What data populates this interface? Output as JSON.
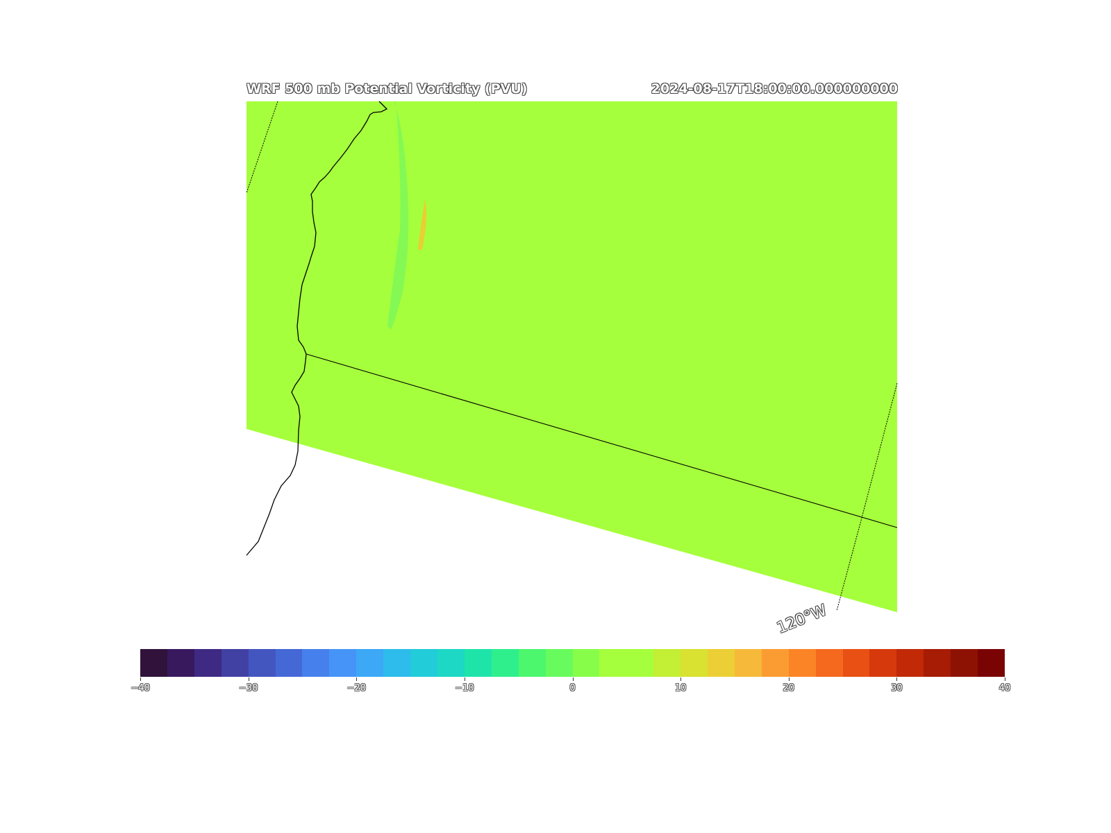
{
  "map": {
    "title_left": "WRF 500 mb Potential Vorticity (PVU)",
    "title_right": "2024-08-17T18:00:00.000000000",
    "longitude_label": "120°W",
    "background_field_color": "#a6ff3c",
    "boundary_color": "#000000"
  },
  "colorbar": {
    "ticks": [
      "−40",
      "−30",
      "−20",
      "−10",
      "0",
      "10",
      "20",
      "30",
      "40"
    ],
    "colors": [
      "#30123b",
      "#38195e",
      "#3e2a82",
      "#4140a3",
      "#4356c0",
      "#4468d6",
      "#4680ec",
      "#4694f7",
      "#3ca8f6",
      "#2dbceb",
      "#22ccd9",
      "#1cd8c4",
      "#1fe4aa",
      "#2fef8d",
      "#4cf76e",
      "#68fb5d",
      "#87fd4a",
      "#a6ff3c",
      "#a6ff3c",
      "#c3ef34",
      "#d9e131",
      "#eccf36",
      "#f6b93a",
      "#fb9c32",
      "#fb8427",
      "#f5691f",
      "#e85014",
      "#d6390b",
      "#c12907",
      "#a71c04",
      "#8e1203",
      "#7a0403"
    ]
  }
}
